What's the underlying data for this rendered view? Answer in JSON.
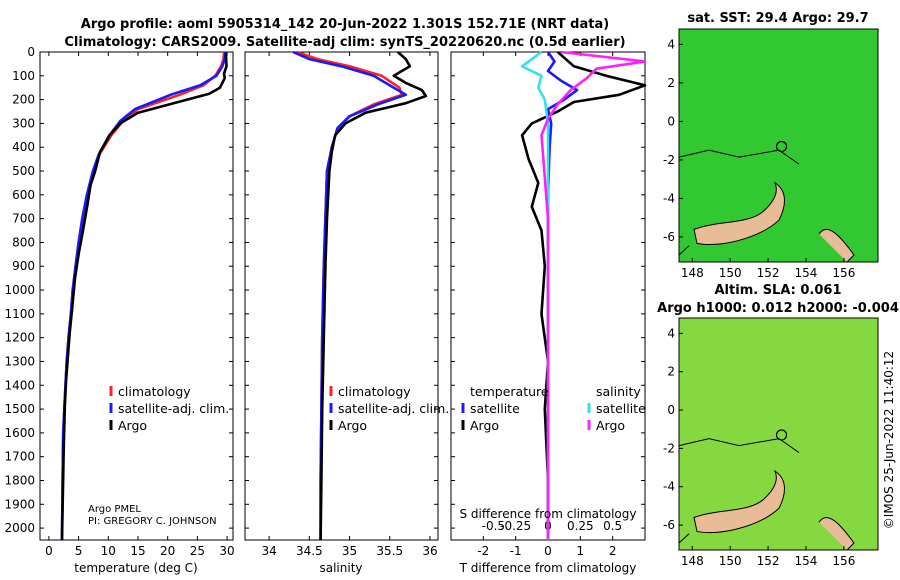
{
  "title": {
    "line1": "Argo profile: aoml 5905314_142 20-Jun-2022 1.301S 152.71E (NRT data)",
    "line2": "Climatology: CARS2009. Satellite-adj clim: synTS_20220620.nc (0.5d earlier)"
  },
  "colors": {
    "climatology": "#ff2020",
    "satellite": "#1a1aff",
    "argo": "#000000",
    "cyan": "#33e0f0",
    "magenta": "#ff20ff",
    "sst_green": "#32c832",
    "land": "#e8bc96"
  },
  "chart_data": [
    {
      "type": "line",
      "id": "temperature",
      "xlabel": "temperature (deg C)",
      "ylabel": "",
      "xlim": [
        -1.5,
        31
      ],
      "ylim": [
        2050,
        0
      ],
      "xticks": [
        0,
        5,
        10,
        15,
        20,
        25,
        30
      ],
      "yticks": [
        0,
        100,
        200,
        300,
        400,
        500,
        600,
        700,
        800,
        900,
        1000,
        1100,
        1200,
        1300,
        1400,
        1500,
        1600,
        1700,
        1800,
        1900,
        2000
      ],
      "legend": [
        "climatology",
        "satellite-adj. clim.",
        "Argo"
      ],
      "series": [
        {
          "name": "climatology",
          "color": "#ff2020",
          "x": [
            29.5,
            29.4,
            29,
            28,
            26,
            22,
            15,
            12.5,
            10.5,
            8.5,
            7.5,
            6.5,
            5.7,
            5,
            4.5,
            4,
            3.7,
            3.3,
            3,
            2.8,
            2.6,
            2.4,
            2.3,
            2.2
          ],
          "y": [
            0,
            30,
            60,
            100,
            140,
            180,
            240,
            290,
            350,
            430,
            500,
            600,
            700,
            800,
            900,
            1000,
            1100,
            1200,
            1300,
            1400,
            1500,
            1600,
            1800,
            2050
          ]
        },
        {
          "name": "satellite-adj. clim.",
          "color": "#1a1aff",
          "x": [
            29.7,
            29.6,
            29.2,
            28.2,
            25.5,
            20.5,
            14.5,
            12,
            10.2,
            8.4,
            7.4,
            6.4,
            5.6,
            5,
            4.5,
            4,
            3.7,
            3.3,
            3,
            2.8,
            2.6,
            2.4,
            2.3,
            2.2
          ],
          "y": [
            0,
            30,
            60,
            100,
            140,
            180,
            240,
            290,
            350,
            430,
            500,
            600,
            700,
            800,
            900,
            1000,
            1100,
            1200,
            1300,
            1400,
            1500,
            1600,
            1800,
            2050
          ]
        },
        {
          "name": "Argo",
          "color": "#000000",
          "x": [
            29.8,
            29.9,
            29.5,
            29.6,
            28.8,
            27,
            21,
            15,
            12,
            10.2,
            8.6,
            7.8,
            7,
            6.5,
            5.8,
            5,
            4.4,
            3.9,
            3.5,
            3.2,
            2.9,
            2.7,
            2.5,
            2.35,
            2.2
          ],
          "y": [
            5,
            60,
            90,
            110,
            150,
            175,
            215,
            255,
            300,
            350,
            420,
            500,
            560,
            640,
            740,
            850,
            950,
            1080,
            1180,
            1280,
            1380,
            1480,
            1650,
            1850,
            2050
          ]
        }
      ]
    },
    {
      "type": "line",
      "id": "salinity",
      "xlabel": "salinity",
      "xlim": [
        33.7,
        36.1
      ],
      "ylim": [
        2050,
        0
      ],
      "xticks": [
        34,
        34.5,
        35,
        35.5,
        36
      ],
      "xticklabels": [
        "34",
        "34.5",
        "35",
        "35.5",
        "36"
      ],
      "legend": [
        "climatology",
        "satellite-adj. clim.",
        "Argo"
      ],
      "series": [
        {
          "name": "climatology",
          "color": "#ff2020",
          "x": [
            34.35,
            34.6,
            35,
            35.4,
            35.62,
            35.65,
            35.3,
            35,
            34.85,
            34.78,
            34.72,
            34.7,
            34.68,
            34.66,
            34.65,
            34.64,
            34.64
          ],
          "y": [
            0,
            30,
            60,
            100,
            150,
            180,
            220,
            270,
            320,
            400,
            500,
            700,
            900,
            1200,
            1500,
            1800,
            2050
          ]
        },
        {
          "name": "satellite-adj. clim.",
          "color": "#1a1aff",
          "x": [
            34.3,
            34.5,
            34.9,
            35.3,
            35.55,
            35.7,
            35.35,
            35,
            34.85,
            34.78,
            34.72,
            34.7,
            34.68,
            34.66,
            34.65,
            34.64,
            34.64
          ],
          "y": [
            0,
            30,
            60,
            100,
            150,
            180,
            220,
            270,
            320,
            400,
            500,
            700,
            900,
            1200,
            1500,
            1800,
            2050
          ]
        },
        {
          "name": "Argo",
          "color": "#000000",
          "x": [
            35.6,
            35.7,
            35.75,
            35.55,
            35.7,
            35.9,
            35.95,
            35.7,
            35.2,
            34.95,
            34.82,
            34.78,
            34.75,
            34.72,
            34.7,
            34.68,
            34.66,
            34.65,
            34.64
          ],
          "y": [
            0,
            30,
            60,
            100,
            130,
            160,
            185,
            215,
            255,
            300,
            350,
            420,
            500,
            700,
            900,
            1200,
            1500,
            1800,
            2050
          ]
        }
      ]
    },
    {
      "type": "line",
      "id": "difference",
      "xlabel": "T difference from climatology",
      "x2label": "S difference from climatology",
      "xlim": [
        -3,
        3
      ],
      "ylim": [
        2050,
        0
      ],
      "xticks": [
        -2,
        -1,
        0,
        1,
        2
      ],
      "x2ticklabels": [
        "-0.5",
        "-0.25",
        "0",
        "0.25",
        "0.5"
      ],
      "legend_left_title": "temperature",
      "legend_right_title": "salinity",
      "legend_left": [
        "satellite",
        "Argo"
      ],
      "legend_right": [
        "satellite",
        "Argo"
      ],
      "series": [
        {
          "name": "T satellite",
          "color": "#1a1aff",
          "x": [
            0,
            0.2,
            0,
            0.4,
            0.9,
            0.5,
            0,
            0.1,
            0.05,
            0,
            0,
            0,
            0
          ],
          "y": [
            0,
            40,
            80,
            120,
            160,
            200,
            240,
            300,
            400,
            600,
            1000,
            1500,
            2050
          ]
        },
        {
          "name": "T Argo",
          "color": "#000000",
          "x": [
            0.3,
            0.8,
            1.8,
            3,
            2.2,
            0.8,
            0.3,
            -0.5,
            -0.8,
            -0.6,
            -0.3,
            -0.5,
            -0.2,
            -0.1,
            -0.2,
            0,
            -0.1,
            0,
            0
          ],
          "y": [
            0,
            60,
            100,
            140,
            180,
            210,
            250,
            300,
            350,
            450,
            550,
            650,
            750,
            900,
            1100,
            1300,
            1500,
            1800,
            2050
          ]
        },
        {
          "name": "S satellite",
          "color": "#33e0f0",
          "x": [
            -0.2,
            -0.8,
            -0.2,
            -0.3,
            -0.1,
            0,
            0,
            0,
            0
          ],
          "y": [
            0,
            60,
            100,
            150,
            200,
            300,
            500,
            1000,
            2050
          ]
        },
        {
          "name": "S Argo",
          "color": "#ff20ff",
          "x": [
            0.4,
            3,
            1.5,
            1.2,
            0.7,
            0.3,
            0,
            -0.2,
            0,
            0
          ],
          "y": [
            0,
            40,
            70,
            110,
            160,
            220,
            280,
            350,
            700,
            2050
          ]
        }
      ]
    }
  ],
  "credit": {
    "line1": "Argo PMEL",
    "line2": "PI: GREGORY C. JOHNSON"
  },
  "maps": {
    "sst_title": "sat. SST: 29.4 Argo: 29.7",
    "sla_title1": "Altim. SLA: 0.061",
    "sla_title2": "Argo h1000: 0.012 h2000: -0.004",
    "lon_ticks": [
      "148",
      "150",
      "152",
      "154",
      "156"
    ],
    "lat_ticks": [
      "4",
      "2",
      "0",
      "-2",
      "-4",
      "-6"
    ],
    "float_lon": 152.71,
    "float_lat": -1.3
  },
  "stamp": "©IMOS 25-Jun-2022 11:40:12"
}
